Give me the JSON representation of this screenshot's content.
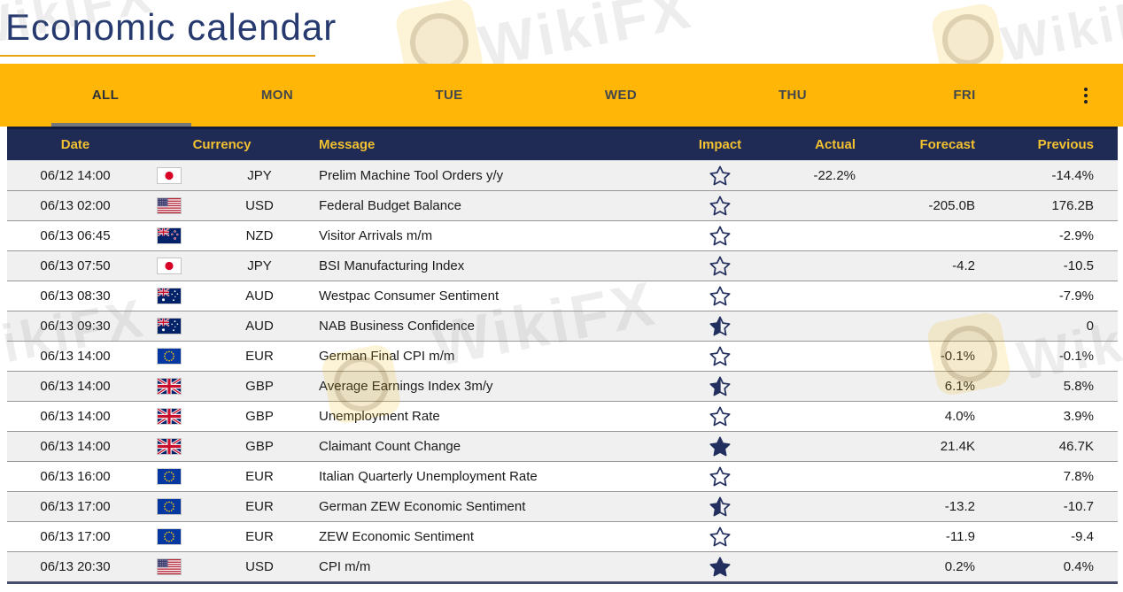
{
  "page": {
    "title": "Economic calendar"
  },
  "watermark": {
    "text": "WikiFX",
    "logo": "wikifx-eagle-logo"
  },
  "tabs": {
    "items": [
      {
        "label": "ALL",
        "active": true
      },
      {
        "label": "MON",
        "active": false
      },
      {
        "label": "TUE",
        "active": false
      },
      {
        "label": "WED",
        "active": false
      },
      {
        "label": "THU",
        "active": false
      },
      {
        "label": "FRI",
        "active": false
      }
    ],
    "more_icon": "kebab-menu-icon"
  },
  "table": {
    "headers": [
      "Date",
      "Currency",
      "Message",
      "Impact",
      "Actual",
      "Forecast",
      "Previous"
    ],
    "impact_icon": "star-icon",
    "rows": [
      {
        "date": "06/12 14:00",
        "flag": "jp",
        "currency": "JPY",
        "message": "Prelim Machine Tool Orders y/y",
        "impact": "low",
        "actual": "-22.2%",
        "forecast": "",
        "previous": "-14.4%",
        "shade": true
      },
      {
        "date": "06/13 02:00",
        "flag": "us",
        "currency": "USD",
        "message": "Federal Budget Balance",
        "impact": "low",
        "actual": "",
        "forecast": "-205.0B",
        "previous": "176.2B",
        "shade": true
      },
      {
        "date": "06/13 06:45",
        "flag": "nz",
        "currency": "NZD",
        "message": "Visitor Arrivals m/m",
        "impact": "low",
        "actual": "",
        "forecast": "",
        "previous": "-2.9%",
        "shade": false
      },
      {
        "date": "06/13 07:50",
        "flag": "jp",
        "currency": "JPY",
        "message": "BSI Manufacturing Index",
        "impact": "low",
        "actual": "",
        "forecast": "-4.2",
        "previous": "-10.5",
        "shade": true
      },
      {
        "date": "06/13 08:30",
        "flag": "au",
        "currency": "AUD",
        "message": "Westpac Consumer Sentiment",
        "impact": "low",
        "actual": "",
        "forecast": "",
        "previous": "-7.9%",
        "shade": false
      },
      {
        "date": "06/13 09:30",
        "flag": "au",
        "currency": "AUD",
        "message": "NAB Business Confidence",
        "impact": "medium",
        "actual": "",
        "forecast": "",
        "previous": "0",
        "shade": true
      },
      {
        "date": "06/13 14:00",
        "flag": "eu",
        "currency": "EUR",
        "message": "German Final CPI m/m",
        "impact": "low",
        "actual": "",
        "forecast": "-0.1%",
        "previous": "-0.1%",
        "shade": false
      },
      {
        "date": "06/13 14:00",
        "flag": "gb",
        "currency": "GBP",
        "message": "Average Earnings Index 3m/y",
        "impact": "medium",
        "actual": "",
        "forecast": "6.1%",
        "previous": "5.8%",
        "shade": true
      },
      {
        "date": "06/13 14:00",
        "flag": "gb",
        "currency": "GBP",
        "message": "Unemployment Rate",
        "impact": "low",
        "actual": "",
        "forecast": "4.0%",
        "previous": "3.9%",
        "shade": false
      },
      {
        "date": "06/13 14:00",
        "flag": "gb",
        "currency": "GBP",
        "message": "Claimant Count Change",
        "impact": "high",
        "actual": "",
        "forecast": "21.4K",
        "previous": "46.7K",
        "shade": true
      },
      {
        "date": "06/13 16:00",
        "flag": "eu",
        "currency": "EUR",
        "message": "Italian Quarterly Unemployment Rate",
        "impact": "low",
        "actual": "",
        "forecast": "",
        "previous": "7.8%",
        "shade": false
      },
      {
        "date": "06/13 17:00",
        "flag": "eu",
        "currency": "EUR",
        "message": "German ZEW Economic Sentiment",
        "impact": "medium",
        "actual": "",
        "forecast": "-13.2",
        "previous": "-10.7",
        "shade": true
      },
      {
        "date": "06/13 17:00",
        "flag": "eu",
        "currency": "EUR",
        "message": "ZEW Economic Sentiment",
        "impact": "low",
        "actual": "",
        "forecast": "-11.9",
        "previous": "-9.4",
        "shade": false
      },
      {
        "date": "06/13 20:30",
        "flag": "us",
        "currency": "USD",
        "message": "CPI m/m",
        "impact": "high",
        "actual": "",
        "forecast": "0.2%",
        "previous": "0.4%",
        "shade": true
      }
    ]
  },
  "colors": {
    "accent_orange": "#FFB607",
    "header_navy": "#1F2A55",
    "gold_text": "#F2C230",
    "title_navy": "#273A6F",
    "row_shade": "#F0F0F1",
    "star_navy": "#232F5E",
    "active_tab_underline": "#75787B",
    "title_underline": "#E7A312"
  }
}
